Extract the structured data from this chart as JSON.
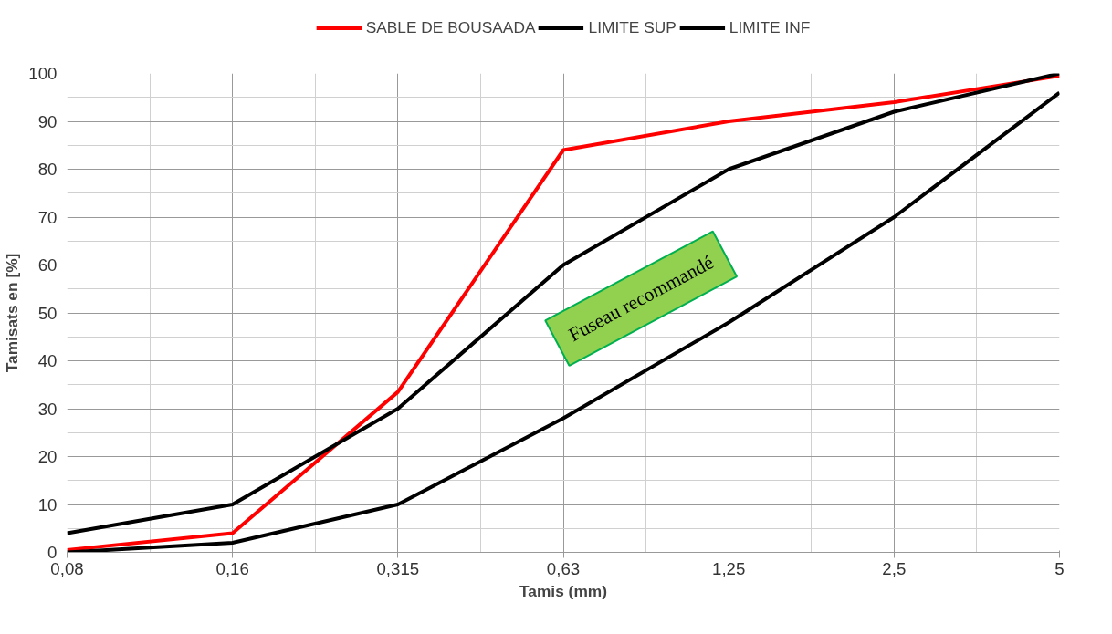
{
  "chart_data": {
    "type": "line",
    "xlabel": "Tamis (mm)",
    "ylabel": "Tamisats en [%]",
    "categories": [
      "0,08",
      "0,16",
      "0,315",
      "0,63",
      "1,25",
      "2,5",
      "5"
    ],
    "series": [
      {
        "name": "SABLE DE BOUSAADA",
        "color": "#ff0000",
        "values": [
          0.5,
          4,
          33.5,
          84,
          90,
          94,
          99.5
        ]
      },
      {
        "name": "LIMITE SUP",
        "color": "#000000",
        "values": [
          4,
          10,
          30,
          60,
          80,
          92,
          100
        ]
      },
      {
        "name": "LIMITE INF",
        "color": "#000000",
        "values": [
          0,
          2,
          10,
          28,
          48,
          70,
          96
        ]
      }
    ],
    "ylim": [
      0,
      100
    ],
    "yticks": [
      0,
      10,
      20,
      30,
      40,
      50,
      60,
      70,
      80,
      90,
      100
    ],
    "grid": true,
    "legend": "top",
    "marker": "none",
    "line_style": "solid",
    "annotations": [
      "Fuseau recommandé"
    ]
  }
}
